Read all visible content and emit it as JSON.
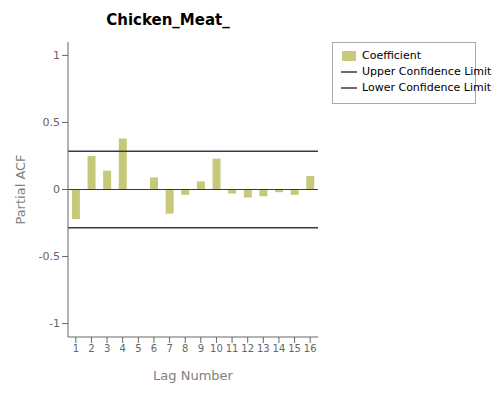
{
  "chart_data": {
    "type": "bar",
    "title": "Chicken_Meat_",
    "x_label": "Lag Number",
    "y_label": "Partial ACF",
    "categories": [
      "1",
      "2",
      "3",
      "4",
      "5",
      "6",
      "7",
      "8",
      "9",
      "10",
      "11",
      "12",
      "13",
      "14",
      "15",
      "16"
    ],
    "series": [
      {
        "name": "Coefficient",
        "type": "bar",
        "color": "#c8c87a",
        "values": [
          -0.22,
          0.25,
          0.14,
          0.38,
          0.0,
          0.09,
          -0.18,
          -0.04,
          0.06,
          0.23,
          -0.03,
          -0.06,
          -0.05,
          -0.02,
          -0.04,
          0.1
        ]
      }
    ],
    "reference_lines": [
      {
        "name": "Upper Confidence Limit",
        "value": 0.285,
        "color": "#3a3a3a"
      },
      {
        "name": "Lower Confidence Limit",
        "value": -0.285,
        "color": "#3a3a3a"
      },
      {
        "value": 0.0,
        "color": "#3a3a3a"
      }
    ],
    "ylim": [
      -1.1,
      1.1
    ],
    "yticks": [
      -1.0,
      -0.5,
      0.0,
      0.5,
      1.0
    ],
    "grid": false
  }
}
